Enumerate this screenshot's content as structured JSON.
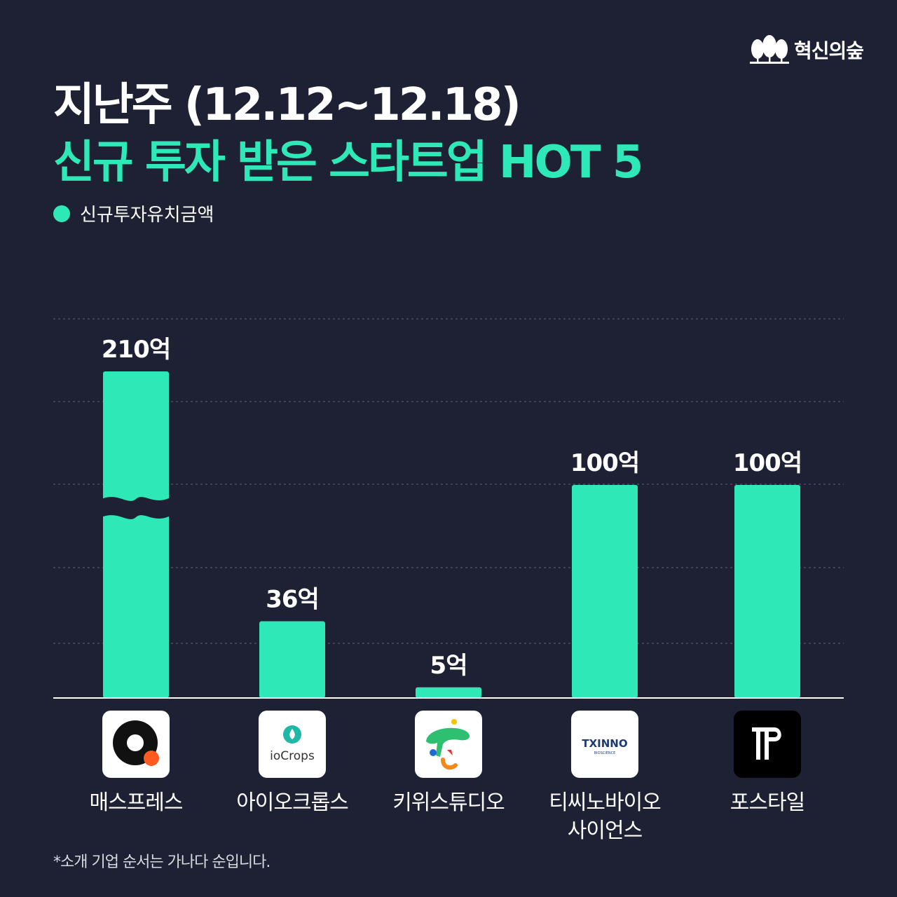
{
  "brand": {
    "name": "혁신의숲"
  },
  "header": {
    "title_line1": "지난주 (12.12~12.18)",
    "title_line2": "신규 투자 받은 스타트업 HOT 5"
  },
  "colors": {
    "accent": "#2ee8b8",
    "background": "#1d2133",
    "text": "#ffffff"
  },
  "chart_data": {
    "type": "bar",
    "categories": [
      "매스프레스",
      "아이오크롭스",
      "키위스튜디오",
      "티씨노바이오\n사이언스",
      "포스타일"
    ],
    "series": [
      {
        "name": "신규투자유치금액",
        "values": [
          210,
          36,
          5,
          100,
          100
        ]
      }
    ],
    "value_labels": [
      "210억",
      "36억",
      "5억",
      "100억",
      "100억"
    ],
    "broken_axis_bar": "매스프레스",
    "legend_position": "top-left",
    "grid": true
  },
  "logos": {
    "iocrops_text": "ioCrops",
    "txinno_text": "TXINNO",
    "txinno_sub": "BIOSCIENCE"
  },
  "footnote": "*소개 기업 순서는 가나다 순입니다."
}
